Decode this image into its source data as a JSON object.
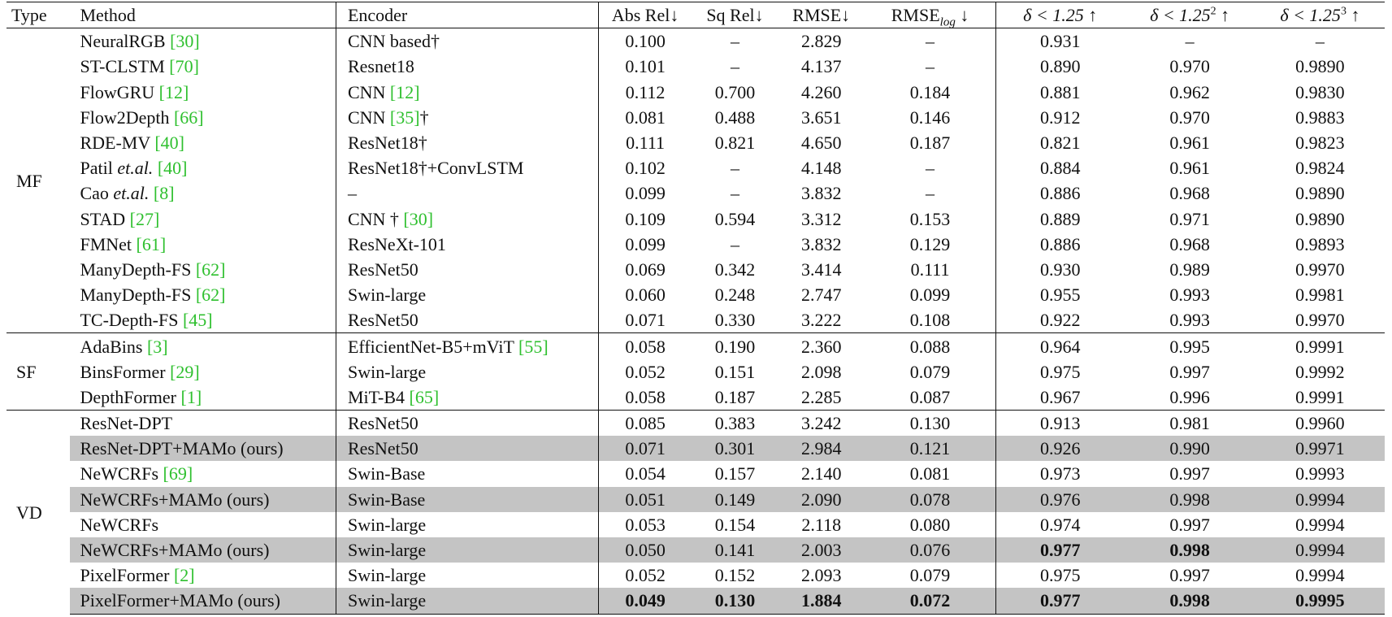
{
  "headers": {
    "type": "Type",
    "method": "Method",
    "encoder": "Encoder",
    "abs_rel": "Abs Rel↓",
    "sq_rel": "Sq Rel↓",
    "rmse": "RMSE↓",
    "rmse_log_pre": "RMSE",
    "rmse_log_sub": "log",
    "rmse_log_post": " ↓",
    "d1": "δ < 1.25 ↑",
    "d2_pre": "δ < 1.25",
    "d2_sup": "2",
    "d2_post": " ↑",
    "d3_pre": "δ < 1.25",
    "d3_sup": "3",
    "d3_post": " ↑"
  },
  "groups": [
    {
      "type": "MF",
      "rows": [
        {
          "method": "NeuralRGB ",
          "method_ref": "[30]",
          "encoder": "CNN based†",
          "abs_rel": "0.100",
          "sq_rel": "–",
          "rmse": "2.829",
          "rmse_log": "–",
          "d1": "0.931",
          "d2": "–",
          "d3": "–"
        },
        {
          "method": "ST-CLSTM ",
          "method_ref": "[70]",
          "encoder": "Resnet18",
          "abs_rel": "0.101",
          "sq_rel": "–",
          "rmse": "4.137",
          "rmse_log": "–",
          "d1": "0.890",
          "d2": "0.970",
          "d3": "0.9890"
        },
        {
          "method": "FlowGRU ",
          "method_ref": "[12]",
          "encoder": "CNN ",
          "encoder_ref": "[12]",
          "abs_rel": "0.112",
          "sq_rel": "0.700",
          "rmse": "4.260",
          "rmse_log": "0.184",
          "d1": "0.881",
          "d2": "0.962",
          "d3": "0.9830"
        },
        {
          "method": "Flow2Depth ",
          "method_ref": "[66]",
          "encoder": "CNN ",
          "encoder_ref": "[35]",
          "encoder_post": "†",
          "abs_rel": "0.081",
          "sq_rel": "0.488",
          "rmse": "3.651",
          "rmse_log": "0.146",
          "d1": "0.912",
          "d2": "0.970",
          "d3": "0.9883"
        },
        {
          "method": "RDE-MV ",
          "method_ref": "[40]",
          "encoder": "ResNet18†",
          "abs_rel": "0.111",
          "sq_rel": "0.821",
          "rmse": "4.650",
          "rmse_log": "0.187",
          "d1": "0.821",
          "d2": "0.961",
          "d3": "0.9823"
        },
        {
          "method": "Patil ",
          "method_it": "et.al.",
          "method_ref": "[40]",
          "encoder": "ResNet18†+ConvLSTM",
          "abs_rel": "0.102",
          "sq_rel": "–",
          "rmse": "4.148",
          "rmse_log": "–",
          "d1": "0.884",
          "d2": "0.961",
          "d3": "0.9824"
        },
        {
          "method": "Cao ",
          "method_it": "et.al.",
          "method_ref": "[8]",
          "encoder": "–",
          "abs_rel": "0.099",
          "sq_rel": "–",
          "rmse": "3.832",
          "rmse_log": "–",
          "d1": "0.886",
          "d2": "0.968",
          "d3": "0.9890"
        },
        {
          "method": "STAD ",
          "method_ref": "[27]",
          "encoder": "CNN † ",
          "encoder_ref": "[30]",
          "abs_rel": "0.109",
          "sq_rel": "0.594",
          "rmse": "3.312",
          "rmse_log": "0.153",
          "d1": "0.889",
          "d2": "0.971",
          "d3": "0.9890"
        },
        {
          "method": "FMNet ",
          "method_ref": "[61]",
          "encoder": "ResNeXt-101",
          "abs_rel": "0.099",
          "sq_rel": "–",
          "rmse": "3.832",
          "rmse_log": "0.129",
          "d1": "0.886",
          "d2": "0.968",
          "d3": "0.9893"
        },
        {
          "method": "ManyDepth-FS ",
          "method_ref": "[62]",
          "encoder": "ResNet50",
          "abs_rel": "0.069",
          "sq_rel": "0.342",
          "rmse": "3.414",
          "rmse_log": "0.111",
          "d1": "0.930",
          "d2": "0.989",
          "d3": "0.9970"
        },
        {
          "method": "ManyDepth-FS ",
          "method_ref": "[62]",
          "encoder": "Swin-large",
          "abs_rel": "0.060",
          "sq_rel": "0.248",
          "rmse": "2.747",
          "rmse_log": "0.099",
          "d1": "0.955",
          "d2": "0.993",
          "d3": "0.9981"
        },
        {
          "method": "TC-Depth-FS ",
          "method_ref": "[45]",
          "encoder": "ResNet50",
          "abs_rel": "0.071",
          "sq_rel": "0.330",
          "rmse": "3.222",
          "rmse_log": "0.108",
          "d1": "0.922",
          "d2": "0.993",
          "d3": "0.9970"
        }
      ]
    },
    {
      "type": "SF",
      "rows": [
        {
          "method": "AdaBins ",
          "method_ref": "[3]",
          "encoder": "EfficientNet-B5+mViT ",
          "encoder_ref": "[55]",
          "abs_rel": "0.058",
          "sq_rel": "0.190",
          "rmse": "2.360",
          "rmse_log": "0.088",
          "d1": "0.964",
          "d2": "0.995",
          "d3": "0.9991"
        },
        {
          "method": "BinsFormer ",
          "method_ref": "[29]",
          "encoder": "Swin-large",
          "abs_rel": "0.052",
          "sq_rel": "0.151",
          "rmse": "2.098",
          "rmse_log": "0.079",
          "d1": "0.975",
          "d2": "0.997",
          "d3": "0.9992"
        },
        {
          "method": "DepthFormer ",
          "method_ref": "[1]",
          "encoder": "MiT-B4 ",
          "encoder_ref": "[65]",
          "abs_rel": "0.058",
          "sq_rel": "0.187",
          "rmse": "2.285",
          "rmse_log": "0.087",
          "d1": "0.967",
          "d2": "0.996",
          "d3": "0.9991"
        }
      ]
    },
    {
      "type": "VD",
      "rows": [
        {
          "method": "ResNet-DPT",
          "encoder": "ResNet50",
          "abs_rel": "0.085",
          "sq_rel": "0.383",
          "rmse": "3.242",
          "rmse_log": "0.130",
          "d1": "0.913",
          "d2": "0.981",
          "d3": "0.9960"
        },
        {
          "method": "ResNet-DPT+MAMo (ours)",
          "encoder": "ResNet50",
          "abs_rel": "0.071",
          "sq_rel": "0.301",
          "rmse": "2.984",
          "rmse_log": "0.121",
          "d1": "0.926",
          "d2": "0.990",
          "d3": "0.9971",
          "ours": true
        },
        {
          "method": "NeWCRFs ",
          "method_ref": "[69]",
          "encoder": "Swin-Base",
          "abs_rel": "0.054",
          "sq_rel": "0.157",
          "rmse": "2.140",
          "rmse_log": "0.081",
          "d1": "0.973",
          "d2": "0.997",
          "d3": "0.9993"
        },
        {
          "method": "NeWCRFs+MAMo (ours)",
          "encoder": "Swin-Base",
          "abs_rel": "0.051",
          "sq_rel": "0.149",
          "rmse": "2.090",
          "rmse_log": "0.078",
          "d1": "0.976",
          "d2": "0.998",
          "d3": "0.9994",
          "ours": true
        },
        {
          "method": "NeWCRFs",
          "encoder": "Swin-large",
          "abs_rel": "0.053",
          "sq_rel": "0.154",
          "rmse": "2.118",
          "rmse_log": "0.080",
          "d1": "0.974",
          "d2": "0.997",
          "d3": "0.9994"
        },
        {
          "method": "NeWCRFs+MAMo (ours)",
          "encoder": "Swin-large",
          "abs_rel": "0.050",
          "sq_rel": "0.141",
          "rmse": "2.003",
          "rmse_log": "0.076",
          "d1": "0.977",
          "d2": "0.998",
          "d3": "0.9994",
          "ours": true,
          "bold": [
            "d1",
            "d2"
          ]
        },
        {
          "method": "PixelFormer ",
          "method_ref": "[2]",
          "encoder": "Swin-large",
          "abs_rel": "0.052",
          "sq_rel": "0.152",
          "rmse": "2.093",
          "rmse_log": "0.079",
          "d1": "0.975",
          "d2": "0.997",
          "d3": "0.9994"
        },
        {
          "method": "PixelFormer+MAMo (ours)",
          "encoder": "Swin-large",
          "abs_rel": "0.049",
          "sq_rel": "0.130",
          "rmse": "1.884",
          "rmse_log": "0.072",
          "d1": "0.977",
          "d2": "0.998",
          "d3": "0.9995",
          "ours": true,
          "bold": [
            "abs_rel",
            "sq_rel",
            "rmse",
            "rmse_log",
            "d1",
            "d2",
            "d3"
          ]
        }
      ]
    }
  ]
}
